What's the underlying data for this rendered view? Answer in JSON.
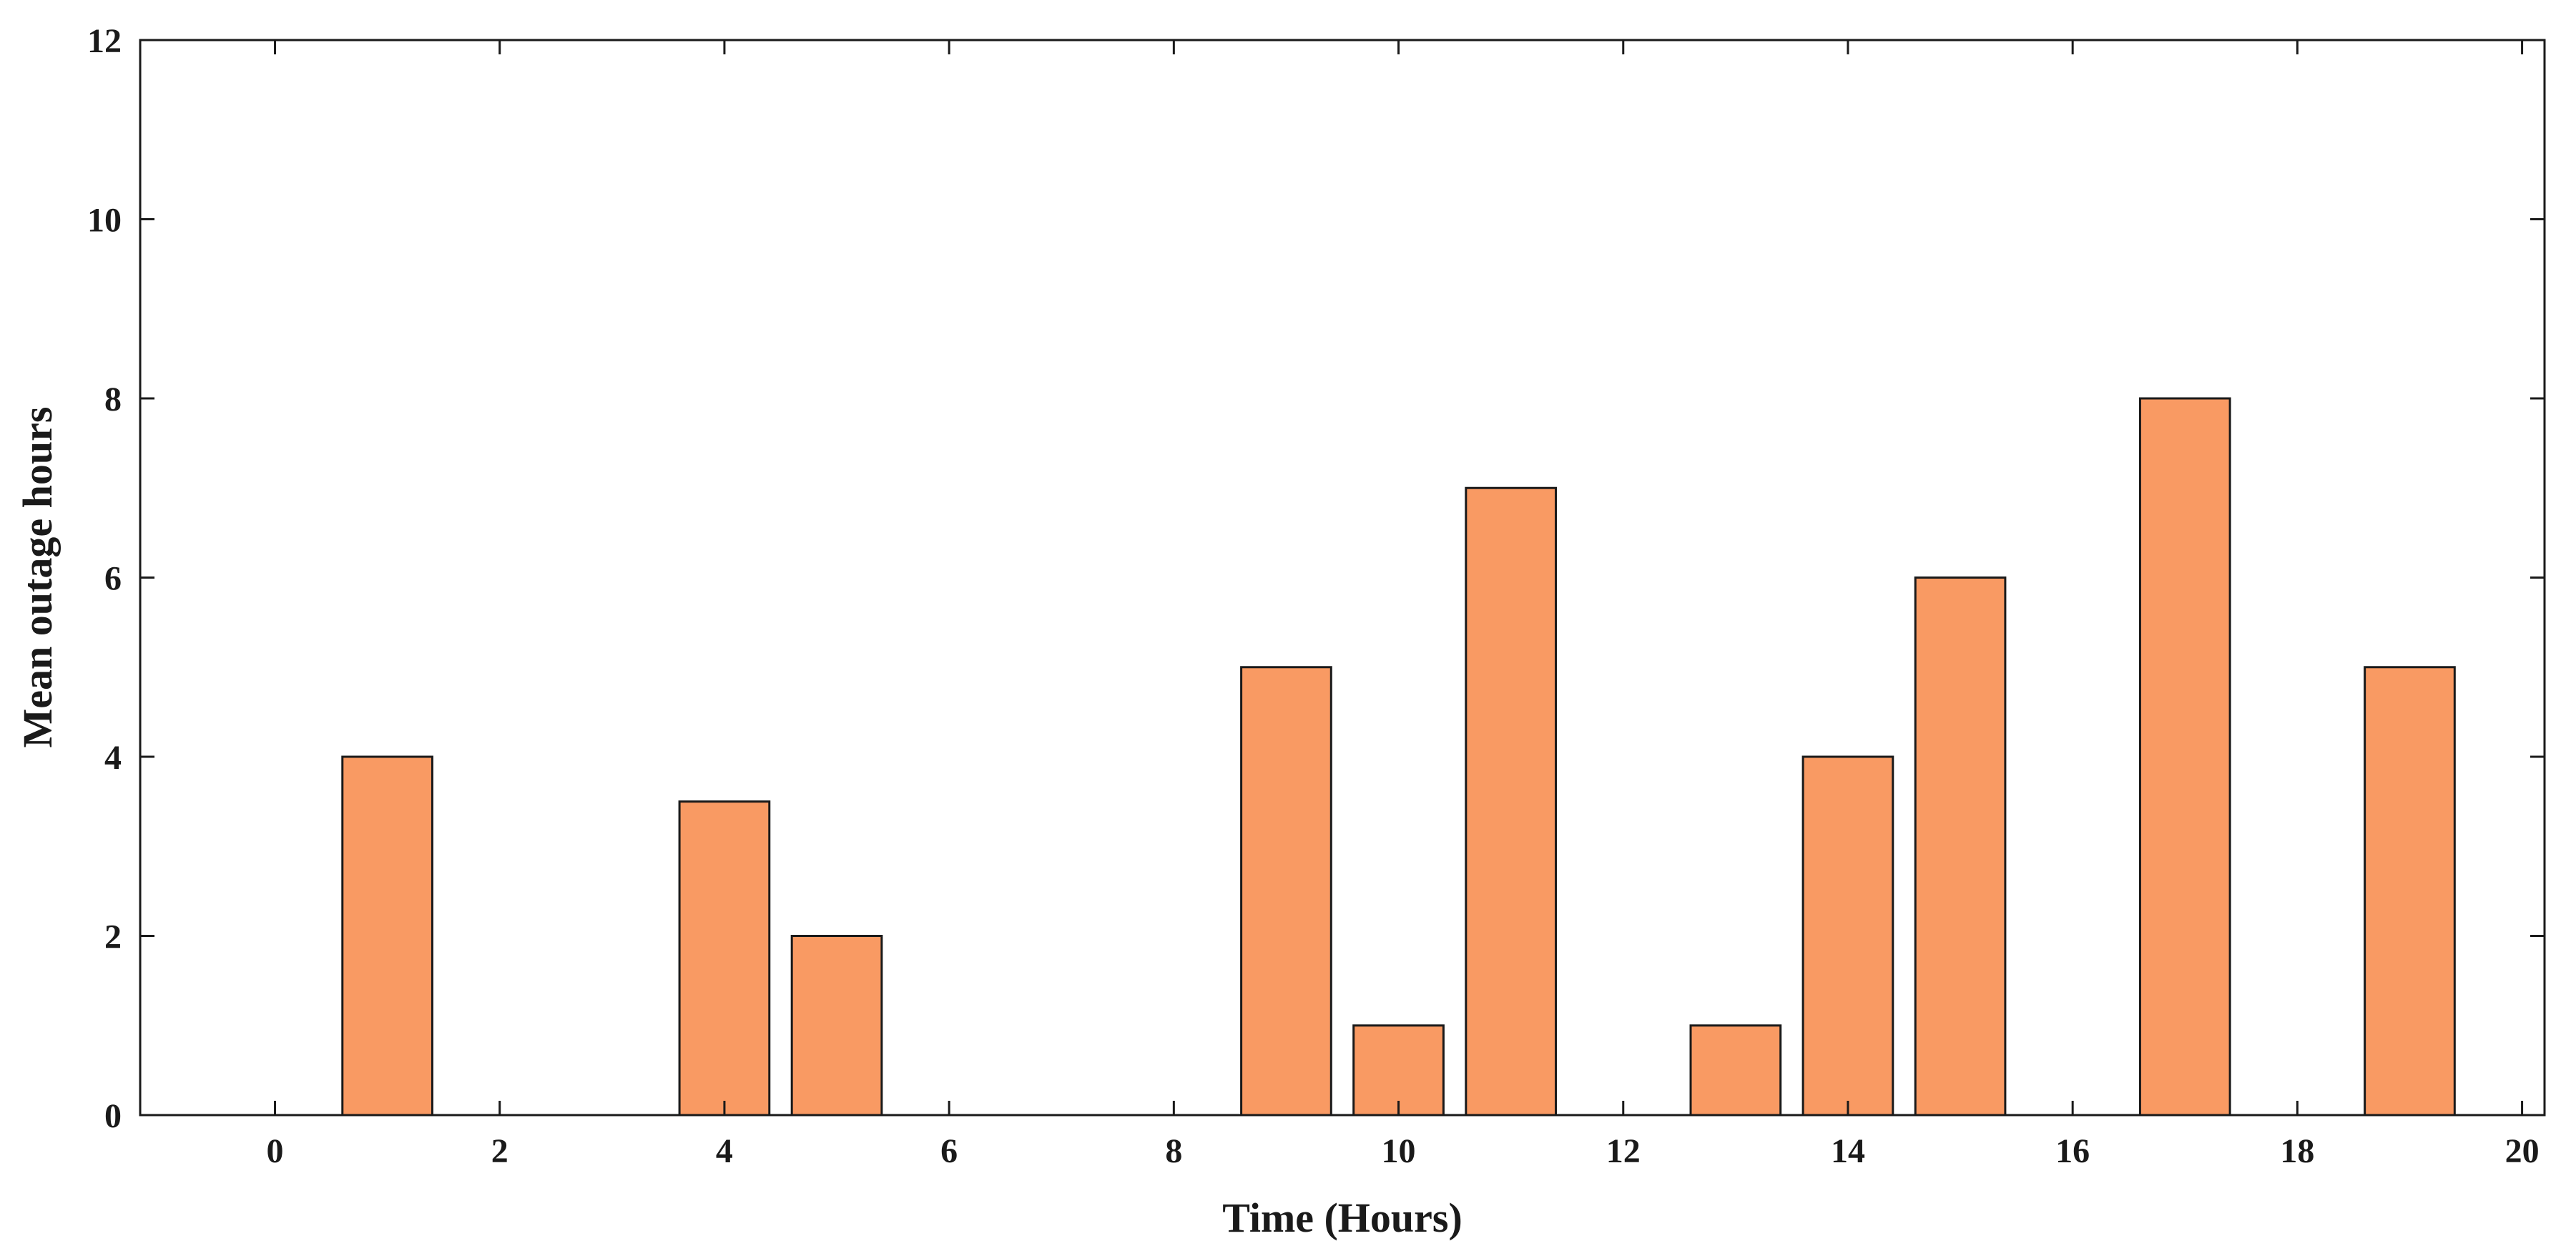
{
  "chart_data": {
    "type": "bar",
    "xlabel": "Time (Hours)",
    "ylabel": "Mean outage hours",
    "xlim": [
      -1.2,
      20.2
    ],
    "ylim": [
      0,
      12
    ],
    "xticks": [
      0,
      2,
      4,
      6,
      8,
      10,
      12,
      14,
      16,
      18,
      20
    ],
    "yticks": [
      0,
      2,
      4,
      6,
      8,
      10,
      12
    ],
    "grid": false,
    "bar_color": "#f99a63",
    "edge_color": "#1a1a1a",
    "bar_width": 0.8,
    "x": [
      0,
      1,
      2,
      3,
      4,
      5,
      6,
      7,
      8,
      9,
      10,
      11,
      12,
      13,
      14,
      15,
      16,
      17,
      18,
      19
    ],
    "values": [
      0,
      4,
      0,
      0,
      3.5,
      2,
      0,
      0,
      0,
      5,
      1,
      7,
      0,
      1,
      4,
      6,
      0,
      8,
      0,
      5
    ]
  }
}
